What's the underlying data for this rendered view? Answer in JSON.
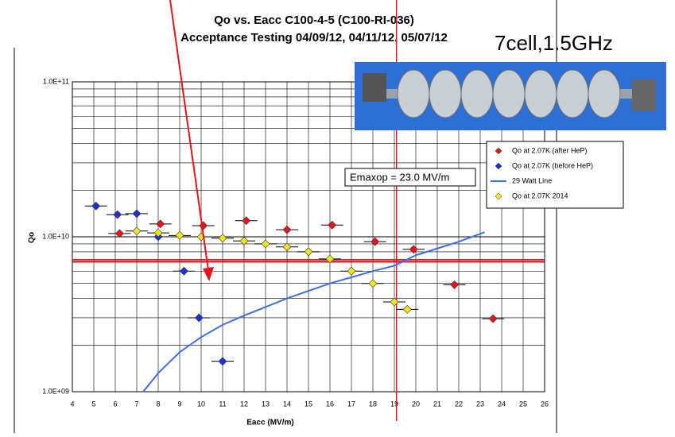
{
  "chart_data": {
    "type": "scatter",
    "title": "Qo vs. Eacc C100-4-5 (C100-RI-036)",
    "subtitle": "Acceptance Testing 04/09/12, 04/11/12, 05/07/12",
    "x_label": "Eacc (MV/m)",
    "y_label": "Qo",
    "log_y": true,
    "grid": true,
    "legend": "upper right",
    "xlim": [
      4,
      26
    ],
    "xticks": [
      4,
      5,
      6,
      7,
      8,
      9,
      10,
      11,
      12,
      13,
      14,
      15,
      16,
      17,
      18,
      19,
      20,
      21,
      22,
      23,
      24,
      25,
      26
    ],
    "ylim": [
      1000000000,
      100000000000
    ],
    "yticks": [
      {
        "value": 1000000000,
        "label": "1.0E+09"
      },
      {
        "value": 10000000000,
        "label": "1.0E+10"
      },
      {
        "value": 100000000000,
        "label": "1.0E+11"
      }
    ],
    "series": [
      {
        "name": "Qo at 2.07K (after HeP)",
        "color": "#e8141a",
        "marker": "diamond",
        "x": [
          6.2,
          8.1,
          10.1,
          12.1,
          14,
          16.1,
          18.1,
          19.9,
          21.8,
          23.6
        ],
        "values": [
          10500000000,
          12100000000,
          11800000000,
          12700000000,
          11100000000,
          11900000000,
          9300000000,
          8300000000,
          4900000000,
          2960000000
        ]
      },
      {
        "name": "Qo at 2.07K (before HeP)",
        "color": "#1f2ee0",
        "marker": "diamond",
        "x": [
          5.1,
          6.1,
          7,
          8,
          9.2,
          9.9,
          11
        ],
        "values": [
          15800000000,
          13900000000,
          14100000000,
          10000000000,
          6000000000,
          3000000000,
          1570000000
        ]
      },
      {
        "name": "29 Watt Line",
        "color": "#3b6fe8",
        "marker": "line",
        "x": [
          7.3,
          8,
          9,
          10,
          11,
          12,
          14,
          16,
          18,
          19,
          20,
          21,
          22,
          23.2
        ],
        "values": [
          1000000000,
          1320000000,
          1800000000,
          2250000000,
          2700000000,
          3100000000,
          4000000000,
          5000000000,
          6000000000,
          6500000000,
          7600000000,
          8400000000,
          9300000000,
          10700000000
        ]
      },
      {
        "name": "Qo at 2.07K 2014",
        "color": "#f5e61a",
        "marker": "diamond",
        "x": [
          7,
          8,
          9,
          10,
          11,
          12,
          13,
          14,
          15,
          16,
          17,
          18,
          19,
          19.6
        ],
        "values": [
          10900000000,
          10600000000,
          10200000000,
          10000000000,
          9800000000,
          9400000000,
          9000000000,
          8600000000,
          8000000000,
          7200000000,
          6000000000,
          5000000000,
          3800000000,
          3400000000
        ]
      }
    ],
    "hline": {
      "value": 7000000000,
      "color": "#e8141a"
    },
    "vline": {
      "value": 19.1,
      "color": "#e8141a",
      "label": "Emaxop = 23.0 MV/m"
    },
    "annotation": "7cell,1.5GHz"
  }
}
